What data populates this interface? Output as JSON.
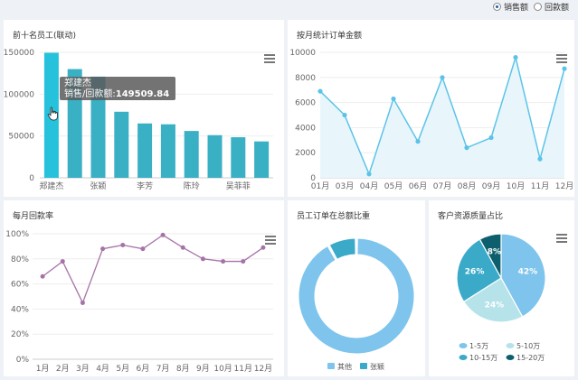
{
  "toolbar": {
    "options": [
      {
        "label": "销售额",
        "checked": true
      },
      {
        "label": "回款额",
        "checked": false
      }
    ]
  },
  "charts": {
    "top_staff": {
      "title": "前十名员工(联动)",
      "tooltip": {
        "name": "郑建杰",
        "series_label": "销售/回款额:",
        "value_text": "149509.84"
      },
      "colors": {
        "bar": "#3ab0c5",
        "highlight": "#26c2dc"
      }
    },
    "monthly_orders": {
      "title": "按月统计订单金额",
      "colors": {
        "line": "#5cc3e8",
        "area": "#e8f6fc"
      }
    },
    "monthly_returns": {
      "title": "每月回款率",
      "colors": {
        "line": "#a673a6"
      }
    },
    "staff_share": {
      "title": "员工订单在总额比重",
      "colors": {
        "other": "#7ec4ec",
        "zhang": "#3aaac8"
      }
    },
    "customer_quality": {
      "title": "客户资源质量占比",
      "colors": [
        "#7ec4ec",
        "#b6e3ea",
        "#3aaac8",
        "#0e5f6e"
      ]
    }
  },
  "chart_data": [
    {
      "type": "bar",
      "title": "前十名员工(联动)",
      "categories": [
        "郑建杰",
        "",
        "张颖",
        "",
        "李芳",
        "",
        "陈玲",
        "",
        "吴菲菲",
        ""
      ],
      "values": [
        149509.84,
        130000,
        121000,
        79000,
        65000,
        64000,
        56000,
        51000,
        48500,
        43500
      ],
      "ylim": [
        0,
        150000
      ],
      "yticks": [
        "0",
        "50000",
        "100000",
        "150000"
      ],
      "highlight_index": 0
    },
    {
      "type": "area",
      "title": "按月统计订单金额",
      "categories": [
        "01月",
        "03月",
        "04月",
        "05月",
        "06月",
        "07月",
        "08月",
        "09月",
        "10月",
        "11月",
        "12月"
      ],
      "values": [
        6900,
        5000,
        300,
        6300,
        2900,
        8000,
        2400,
        3200,
        9600,
        1500,
        8700
      ],
      "ylim": [
        0,
        10000
      ],
      "yticks": [
        "0",
        "2000",
        "4000",
        "6000",
        "8000",
        "10000"
      ]
    },
    {
      "type": "line",
      "title": "每月回款率",
      "categories": [
        "1月",
        "2月",
        "3月",
        "4月",
        "5月",
        "6月",
        "7月",
        "8月",
        "9月",
        "10月",
        "11月",
        "12月"
      ],
      "values": [
        66,
        78,
        45,
        88,
        91,
        88,
        99,
        89,
        80,
        78,
        78,
        89
      ],
      "ylim": [
        0,
        100
      ],
      "yticks": [
        "0%",
        "20%",
        "40%",
        "60%",
        "80%",
        "100%"
      ]
    },
    {
      "type": "pie",
      "title": "员工订单在总额比重",
      "slices": [
        {
          "name": "其他",
          "value": 92
        },
        {
          "name": "张颖",
          "value": 8
        }
      ]
    },
    {
      "type": "pie",
      "title": "客户资源质量占比",
      "slices": [
        {
          "name": "1-5万",
          "value": 42,
          "label": "42%"
        },
        {
          "name": "5-10万",
          "value": 24,
          "label": "24%"
        },
        {
          "name": "10-15万",
          "value": 26,
          "label": "26%"
        },
        {
          "name": "15-20万",
          "value": 8,
          "label": "8%"
        }
      ]
    }
  ]
}
